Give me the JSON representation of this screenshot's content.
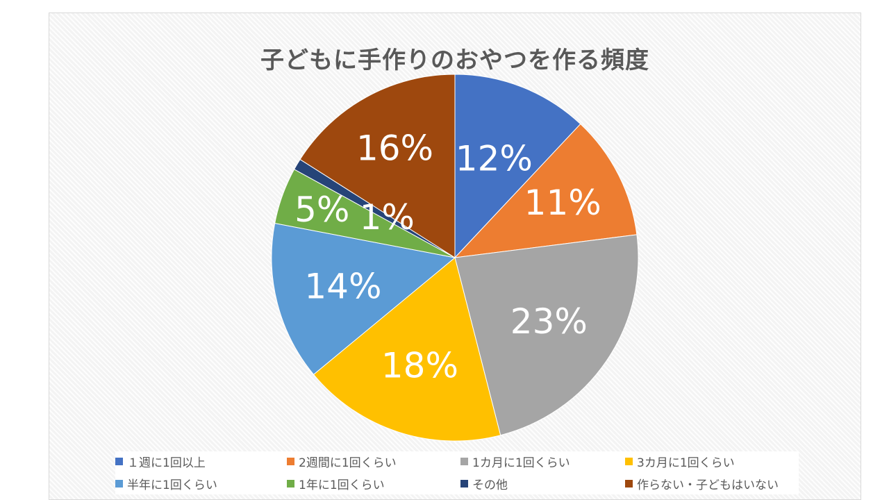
{
  "chart_data": {
    "type": "pie",
    "title": "子どもに手作りのおやつを作る頻度",
    "legend_position": "bottom",
    "slices": [
      {
        "name": "１週に1回以上",
        "value": 12,
        "label": "12%",
        "color": "#4472C4"
      },
      {
        "name": "2週間に1回くらい",
        "value": 11,
        "label": "11%",
        "color": "#ED7D31"
      },
      {
        "name": "1カ月に1回くらい",
        "value": 23,
        "label": "23%",
        "color": "#A5A5A5"
      },
      {
        "name": "3カ月に1回くらい",
        "value": 18,
        "label": "18%",
        "color": "#FFC000"
      },
      {
        "name": "半年に1回くらい",
        "value": 14,
        "label": "14%",
        "color": "#5B9BD5"
      },
      {
        "name": "1年に1回くらい",
        "value": 5,
        "label": "5%",
        "color": "#70AD47"
      },
      {
        "name": "その他",
        "value": 1,
        "label": "1%",
        "color": "#264478"
      },
      {
        "name": "作らない・子どもはいない",
        "value": 16,
        "label": "16%",
        "color": "#9E480E"
      }
    ]
  }
}
